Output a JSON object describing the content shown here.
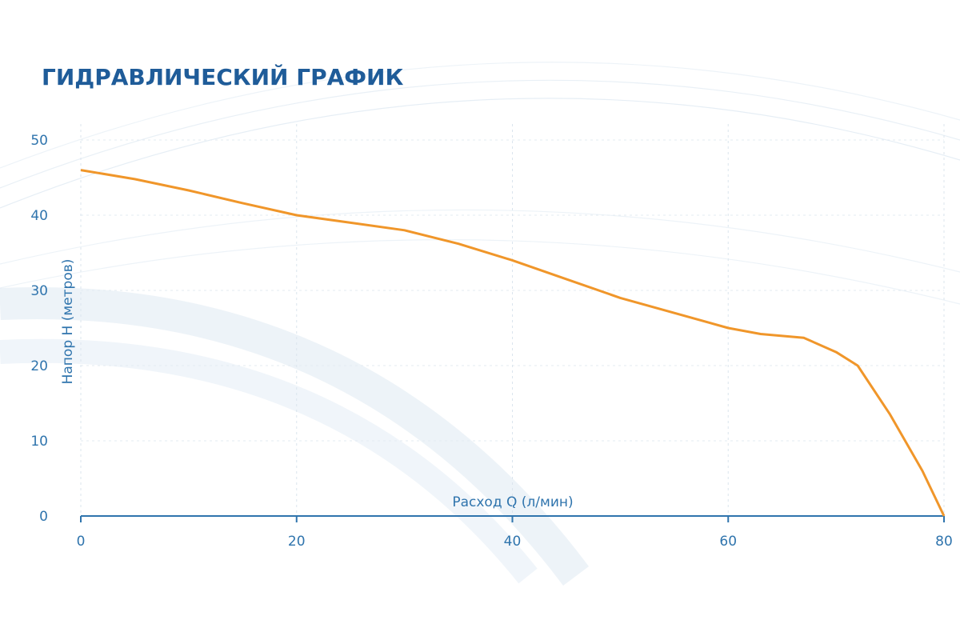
{
  "chart_data": {
    "type": "line",
    "title": "ГИДРАВЛИЧЕСКИЙ ГРАФИК",
    "x_label": "Расход Q (л/мин)",
    "y_label": "Напор Н (метров)",
    "x": [
      0,
      5,
      10,
      15,
      20,
      25,
      30,
      35,
      40,
      45,
      50,
      55,
      60,
      63,
      67,
      70,
      72,
      75,
      78,
      80
    ],
    "series": [
      {
        "name": "Напор",
        "color": "#f0962a",
        "values": [
          46,
          44.8,
          43.3,
          41.6,
          40,
          39,
          38,
          36.2,
          34,
          31.5,
          29,
          27,
          25,
          24.2,
          23.7,
          21.8,
          20,
          13.5,
          6,
          0
        ]
      }
    ],
    "xlim": [
      0,
      80
    ],
    "xticks": [
      0,
      20,
      40,
      60,
      80
    ],
    "ylim": [
      0,
      50
    ],
    "yticks": [
      0,
      10,
      20,
      30,
      40,
      50
    ],
    "grid": true
  }
}
